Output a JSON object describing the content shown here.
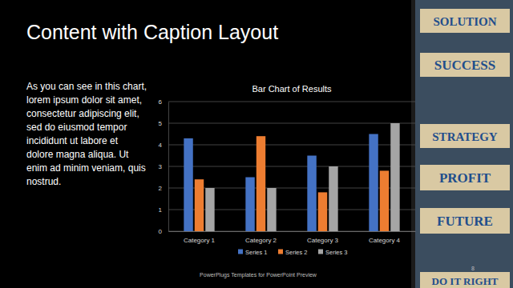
{
  "slide": {
    "title": "Content with Caption Layout",
    "caption_lines": [
      "As you can see in this chart,",
      "lorem ipsum dolor sit amet,",
      "consectetur adipiscing elit,",
      "sed do eiusmod tempor",
      "incididunt ut labore et",
      "dolore magna aliqua. Ut",
      "enim ad minim veniam, quis",
      "nostrud."
    ],
    "image_words": [
      "SOLUTION",
      "SUCCESS",
      "STRATEGY",
      "PROFIT",
      "FUTURE",
      "DO IT RIGHT"
    ],
    "footer": "PowerPlugs Templates for PowerPoint Preview",
    "page_number": "8"
  },
  "chart_data": {
    "type": "bar",
    "title": "Bar Chart of Results",
    "categories": [
      "Category 1",
      "Category 2",
      "Category 3",
      "Category 4"
    ],
    "series": [
      {
        "name": "Series 1",
        "color": "#4472c4",
        "values": [
          4.3,
          2.5,
          3.5,
          4.5
        ]
      },
      {
        "name": "Series 2",
        "color": "#ed7d31",
        "values": [
          2.4,
          4.4,
          1.8,
          2.8
        ]
      },
      {
        "name": "Series 3",
        "color": "#a5a5a5",
        "values": [
          2.0,
          2.0,
          3.0,
          5.0
        ]
      }
    ],
    "ylim": [
      0,
      6
    ],
    "yticks": [
      0,
      1,
      2,
      3,
      4,
      5,
      6
    ],
    "grid": true,
    "legend": "bottom"
  }
}
